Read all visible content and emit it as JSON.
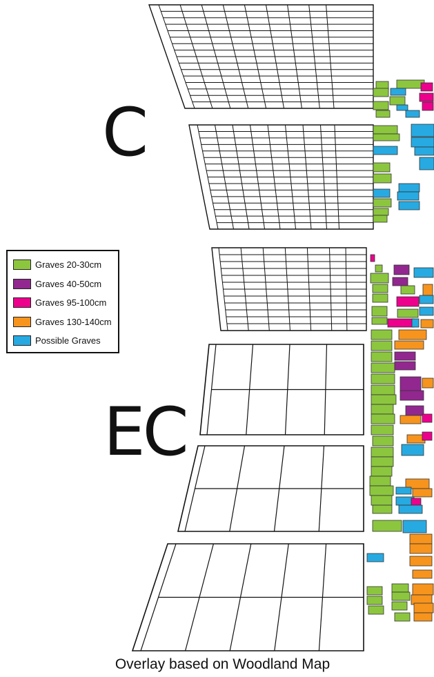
{
  "section_labels": {
    "upper": "C",
    "lower": "EC"
  },
  "legend": {
    "items": [
      {
        "label": "Graves 20-30cm",
        "color": "#8cc63f",
        "icon": "swatch-green"
      },
      {
        "label": "Graves 40-50cm",
        "color": "#92278f",
        "icon": "swatch-purple"
      },
      {
        "label": "Graves 95-100cm",
        "color": "#ec008c",
        "icon": "swatch-magenta"
      },
      {
        "label": "Graves 130-140cm",
        "color": "#f7941d",
        "icon": "swatch-orange"
      },
      {
        "label": "Possible Graves",
        "color": "#27aae1",
        "icon": "swatch-blue"
      }
    ]
  },
  "caption": "Overlay based on Woodland Map",
  "colors": {
    "outline": "#111111",
    "background": "#ffffff"
  }
}
